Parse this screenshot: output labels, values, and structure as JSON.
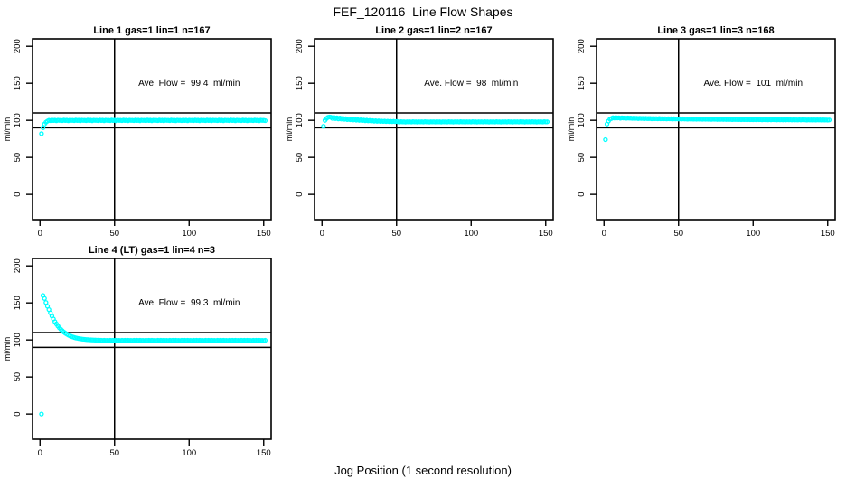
{
  "figure": {
    "title": "FEF_120116  Line Flow Shapes",
    "xlabel": "Jog Position (1 second resolution)",
    "point_color": "#00ffff",
    "line_color": "#000000",
    "background": "#ffffff"
  },
  "chart_data": {
    "type": "scatter",
    "title": "FEF_120116  Line Flow Shapes",
    "xlabel": "Jog Position (1 second resolution)",
    "ylabel": "ml/min",
    "x_ticks": [
      0,
      50,
      100,
      150
    ],
    "y_ticks": [
      0,
      50,
      100,
      150,
      200
    ],
    "xlim": [
      -5,
      155
    ],
    "ylim": [
      -34,
      210
    ],
    "grid": false,
    "legend": "none",
    "ref_lines_y": [
      90,
      110
    ],
    "ref_line_x": 50,
    "x_start": 1,
    "x_step": 1,
    "annotation_pos": {
      "x": 100,
      "y": 150
    },
    "panels": [
      {
        "title": "Line 1 gas=1 lin=1 n=167",
        "gas": 1,
        "lin": 1,
        "n": 167,
        "ave_flow": 99.4,
        "annotation": "Ave. Flow =  99.4  ml/min",
        "y": [
          82,
          90,
          95,
          97.5,
          99,
          100,
          99.6,
          100.3,
          99.8,
          100.1,
          99.5,
          100.2,
          99.9,
          100,
          99.6,
          100.3,
          99.8,
          100.1,
          99.5,
          100.2,
          99.9,
          100,
          99.6,
          100.3,
          99.8,
          100.1,
          99.5,
          100.2,
          99.9,
          100,
          99.6,
          100.3,
          99.8,
          100.1,
          99.5,
          100.2,
          99.9,
          100,
          99.6,
          100.3,
          99.8,
          100.1,
          99.5,
          100.2,
          99.9,
          100,
          99.6,
          100.3,
          99.8,
          100.1,
          99.5,
          100.2,
          99.9,
          100,
          99.6,
          100.3,
          99.8,
          100.1,
          99.5,
          100.2,
          99.9,
          100,
          99.6,
          100.3,
          99.8,
          100.1,
          99.5,
          100.2,
          99.9,
          100,
          99.6,
          100.3,
          99.8,
          100.1,
          99.5,
          100.2,
          99.9,
          100,
          99.6,
          100.3,
          99.8,
          100.1,
          99.5,
          100.2,
          99.9,
          100,
          99.6,
          100.3,
          99.8,
          100.1,
          99.5,
          100.2,
          99.9,
          100,
          99.6,
          100.3,
          99.8,
          100.1,
          99.5,
          100.2,
          99.9,
          100,
          99.6,
          100.3,
          99.8,
          100.1,
          99.5,
          100.2,
          99.9,
          100,
          99.6,
          100.3,
          99.8,
          100.1,
          99.5,
          100.2,
          99.9,
          100,
          99.6,
          100.3,
          99.8,
          100.1,
          99.5,
          100.2,
          99.9,
          100,
          99.6,
          100.3,
          99.8,
          100.1,
          99.5,
          100.2,
          99.9,
          100,
          99.6,
          100.3,
          99.8,
          100.1,
          99.5,
          100.2,
          99.9,
          100,
          99.6,
          100.3,
          99.8,
          100.1,
          99.5,
          100.2,
          99.9,
          100,
          99.6
        ]
      },
      {
        "title": "Line 2 gas=1 lin=2 n=167",
        "gas": 1,
        "lin": 2,
        "n": 167,
        "ave_flow": 98,
        "annotation": "Ave. Flow =  98  ml/min",
        "y": [
          92,
          100,
          102.5,
          104,
          104.5,
          104.1,
          102.6,
          103.9,
          102.4,
          103.4,
          101.9,
          103.1,
          101.7,
          102.6,
          101.4,
          102.2,
          101.0,
          101.9,
          100.8,
          101.5,
          100.5,
          101.2,
          100.2,
          100.9,
          100.0,
          100.6,
          99.7,
          100.3,
          99.5,
          100.1,
          99.3,
          99.8,
          99.1,
          99.6,
          98.9,
          99.4,
          98.7,
          99.2,
          98.6,
          99.0,
          98.5,
          98.9,
          98.4,
          98.8,
          98.3,
          98.7,
          98.2,
          98.6,
          98.2,
          98.5,
          98.1,
          97.8,
          98.2,
          97.9,
          98.0,
          97.7,
          98.1,
          97.9,
          98.1,
          97.8,
          98.2,
          97.9,
          98.0,
          97.7,
          98.1,
          97.9,
          98.1,
          97.8,
          98.2,
          97.9,
          98.0,
          97.7,
          98.1,
          97.9,
          98.1,
          97.8,
          98.2,
          97.9,
          98.0,
          97.7,
          98.1,
          97.9,
          98.1,
          97.8,
          98.2,
          97.9,
          98.0,
          97.7,
          98.1,
          97.9,
          98.1,
          97.8,
          98.2,
          97.9,
          98.0,
          97.7,
          98.1,
          97.9,
          98.1,
          97.8,
          98.2,
          97.9,
          98.0,
          97.7,
          98.1,
          97.9,
          98.1,
          97.8,
          98.2,
          97.9,
          98.0,
          97.7,
          98.1,
          97.9,
          98.1,
          97.8,
          98.2,
          97.9,
          98.0,
          97.7,
          98.1,
          97.9,
          98.1,
          97.8,
          98.2,
          97.9,
          98.0,
          97.7,
          98.1,
          97.9,
          98.1,
          97.8,
          98.2,
          97.9,
          98.0,
          97.7,
          98.1,
          97.9,
          98.1,
          97.8,
          98.2,
          97.9,
          98.0,
          97.7,
          98.1,
          97.9,
          98.1,
          97.8,
          98.2,
          97.9,
          98.0
        ]
      },
      {
        "title": "Line 3 gas=1 lin=3 n=168",
        "gas": 1,
        "lin": 3,
        "n": 168,
        "ave_flow": 101,
        "annotation": "Ave. Flow =  101  ml/min",
        "y": [
          74,
          95,
          99,
          101.5,
          102.5,
          103.5,
          103.1,
          103.7,
          103.2,
          103.4,
          102.8,
          103.4,
          103.1,
          103.2,
          102.8,
          103.2,
          102.9,
          103.0,
          102.6,
          103.0,
          102.7,
          102.8,
          102.4,
          102.8,
          102.5,
          102.6,
          102.2,
          102.6,
          102.3,
          102.4,
          102.5,
          102.1,
          102.4,
          102.2,
          102.3,
          102.0,
          102.4,
          102.1,
          102.2,
          102.0,
          102.2,
          101.9,
          102.2,
          102.0,
          102.1,
          101.8,
          102.1,
          101.9,
          102.0,
          101.8,
          102.0,
          101.7,
          102.0,
          101.8,
          101.9,
          101.6,
          101.9,
          101.7,
          101.8,
          101.6,
          101.8,
          101.5,
          101.8,
          101.6,
          101.7,
          101.4,
          101.7,
          101.5,
          101.6,
          101.4,
          101.6,
          101.3,
          101.6,
          101.4,
          101.5,
          101.2,
          101.5,
          101.3,
          101.4,
          101.2,
          101.4,
          101.1,
          101.4,
          101.2,
          101.3,
          101.0,
          101.3,
          101.1,
          101.2,
          101.0,
          101.2,
          100.9,
          101.2,
          101.0,
          101.1,
          100.8,
          101.1,
          100.9,
          101.0,
          100.8,
          101.1,
          100.8,
          101.1,
          100.9,
          101.0,
          100.7,
          101.0,
          100.8,
          100.9,
          100.7,
          101.0,
          100.7,
          101.0,
          100.8,
          100.9,
          100.6,
          100.9,
          100.7,
          100.8,
          100.6,
          100.9,
          100.6,
          100.9,
          100.7,
          100.8,
          100.5,
          100.8,
          100.6,
          100.7,
          100.5,
          100.8,
          100.5,
          100.8,
          100.6,
          100.7,
          100.4,
          100.7,
          100.5,
          100.6,
          100.4,
          100.7,
          100.4,
          100.7,
          100.5,
          100.6,
          100.3,
          100.6,
          100.4,
          100.5,
          100.3,
          100.5
        ]
      },
      {
        "title": "Line 4 (LT) gas=1 lin=4 n=3",
        "gas": 1,
        "lin": 4,
        "n": 3,
        "ave_flow": 99.3,
        "annotation": "Ave. Flow =  99.3  ml/min",
        "y": [
          0,
          160,
          156,
          150.5,
          145.5,
          140.9,
          136.5,
          132.3,
          128.3,
          124.6,
          121.6,
          118.8,
          116.3,
          114.2,
          112.3,
          110.6,
          109.1,
          107.8,
          106.6,
          105.6,
          104.7,
          104.0,
          103.3,
          102.7,
          102.3,
          101.9,
          101.5,
          101.2,
          101.0,
          100.8,
          100.5,
          100.4,
          100.2,
          100.1,
          100.0,
          99.9,
          99.8,
          99.7,
          99.7,
          99.6,
          99.5,
          99.2,
          99.6,
          99.3,
          99.4,
          99.1,
          99.5,
          99.3,
          99.5,
          99.2,
          99.6,
          99.3,
          99.4,
          99.1,
          99.5,
          99.3,
          99.5,
          99.2,
          99.6,
          99.3,
          99.4,
          99.1,
          99.5,
          99.3,
          99.5,
          99.2,
          99.6,
          99.3,
          99.4,
          99.1,
          99.5,
          99.3,
          99.5,
          99.2,
          99.6,
          99.3,
          99.4,
          99.1,
          99.5,
          99.3,
          99.5,
          99.2,
          99.6,
          99.3,
          99.4,
          99.1,
          99.5,
          99.3,
          99.5,
          99.2,
          99.6,
          99.3,
          99.4,
          99.1,
          99.5,
          99.3,
          99.5,
          99.2,
          99.6,
          99.3,
          99.4,
          99.1,
          99.5,
          99.3,
          99.5,
          99.2,
          99.6,
          99.3,
          99.4,
          99.1,
          99.5,
          99.3,
          99.5,
          99.2,
          99.6,
          99.3,
          99.4,
          99.1,
          99.5,
          99.3,
          99.5,
          99.2,
          99.6,
          99.3,
          99.4,
          99.1,
          99.5,
          99.3,
          99.5,
          99.2,
          99.6,
          99.3,
          99.4,
          99.1,
          99.5,
          99.3,
          99.5,
          99.2,
          99.6,
          99.3,
          99.4,
          99.1,
          99.5,
          99.3,
          99.5,
          99.2,
          99.6,
          99.3,
          99.4,
          99.1,
          99.5
        ]
      }
    ]
  }
}
